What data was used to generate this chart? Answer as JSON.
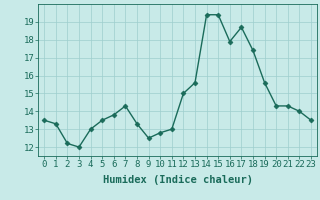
{
  "x": [
    0,
    1,
    2,
    3,
    4,
    5,
    6,
    7,
    8,
    9,
    10,
    11,
    12,
    13,
    14,
    15,
    16,
    17,
    18,
    19,
    20,
    21,
    22,
    23
  ],
  "y": [
    13.5,
    13.3,
    12.2,
    12.0,
    13.0,
    13.5,
    13.8,
    14.3,
    13.3,
    12.5,
    12.8,
    13.0,
    15.0,
    15.6,
    19.4,
    19.4,
    17.9,
    18.7,
    17.4,
    15.6,
    14.3,
    14.3,
    14.0,
    13.5
  ],
  "line_color": "#1a6b5a",
  "marker_color": "#1a6b5a",
  "bg_color": "#c8eae8",
  "grid_color": "#9ecece",
  "xlabel": "Humidex (Indice chaleur)",
  "ylim": [
    11.5,
    20.0
  ],
  "xlim": [
    -0.5,
    23.5
  ],
  "yticks": [
    12,
    13,
    14,
    15,
    16,
    17,
    18,
    19
  ],
  "xticks": [
    0,
    1,
    2,
    3,
    4,
    5,
    6,
    7,
    8,
    9,
    10,
    11,
    12,
    13,
    14,
    15,
    16,
    17,
    18,
    19,
    20,
    21,
    22,
    23
  ],
  "xlabel_fontsize": 7.5,
  "tick_fontsize": 6.5,
  "marker_size": 2.5,
  "line_width": 1.0
}
